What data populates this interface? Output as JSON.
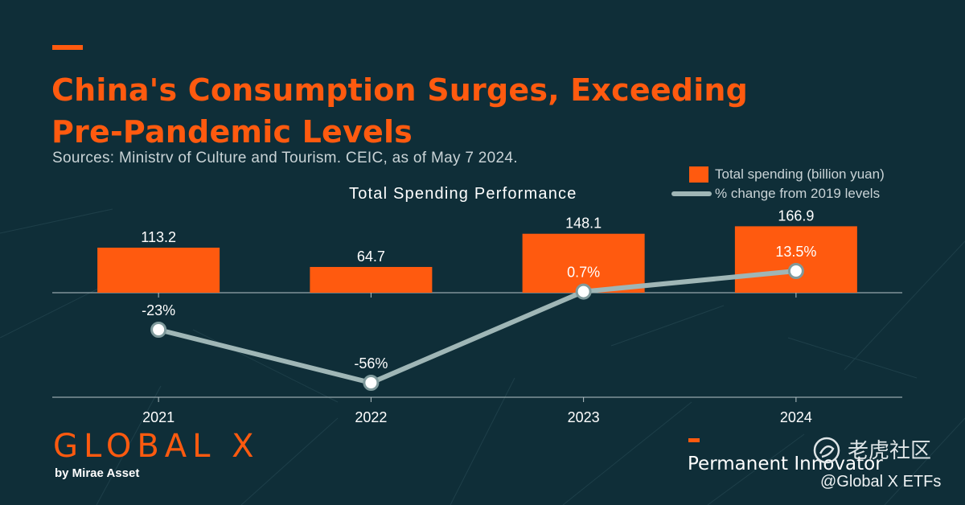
{
  "header": {
    "title": "China's Consumption Surges, Exceeding Pre-Pandemic Levels",
    "source": "Sources: Ministrv of Culture and Tourism. CEIC, as of May 7 2024."
  },
  "chart_data": {
    "type": "bar",
    "title": "Total Spending Performance",
    "categories": [
      "2021",
      "2022",
      "2023",
      "2024"
    ],
    "series": [
      {
        "name": "Total spending (billion yuan)",
        "type": "bar",
        "values": [
          113.2,
          64.7,
          148.1,
          166.9
        ],
        "labels": [
          "113.2",
          "64.7",
          "148.1",
          "166.9"
        ],
        "color": "#ff5a0f"
      },
      {
        "name": "% change from 2019 levels",
        "type": "line",
        "values": [
          -23,
          -56,
          0.7,
          13.5
        ],
        "labels": [
          "-23%",
          "-56%",
          "0.7%",
          "13.5%"
        ],
        "color": "#9fb6b6"
      }
    ],
    "legend": "top-right",
    "grid": false
  },
  "footer": {
    "brand": "GLOBAL X",
    "brand_sub": "by Mirae Asset",
    "tagline": "Permanent Innovator",
    "watermark_cn": "老虎社区",
    "watermark_handle": "@Global X ETFs"
  },
  "colors": {
    "background": "#0f2e38",
    "accent": "#ff5a0f",
    "line": "#9fb6b6"
  }
}
